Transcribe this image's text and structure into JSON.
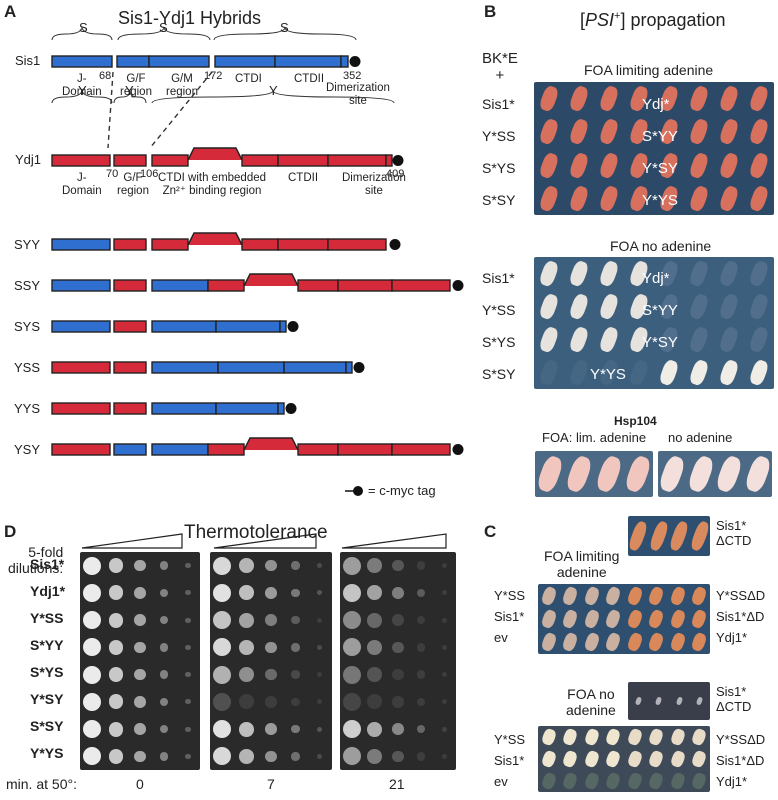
{
  "panelA": {
    "letter": "A",
    "title": "Sis1-Ydj1 Hybrids",
    "sis1": {
      "name": "Sis1",
      "brackets": [
        "S",
        "S",
        "S"
      ],
      "domains": [
        "J-\nDomain",
        "G/F\nregion",
        "G/M\nregion",
        "CTDI",
        "CTDII",
        "Dimerization\nsite"
      ],
      "positions": [
        "68",
        "172",
        "352"
      ]
    },
    "ydj1": {
      "name": "Ydj1",
      "brackets": [
        "Y",
        "Y",
        "Y"
      ],
      "domains": [
        "J-\nDomain",
        "G/F\nregion",
        "CTDI with embedded\nZn²⁺ binding region",
        "CTDII",
        "Dimerization\nsite"
      ],
      "positions": [
        "70",
        "106",
        "409"
      ]
    },
    "hybrids": [
      "SYY",
      "SSY",
      "SYS",
      "YSS",
      "YYS",
      "YSY"
    ],
    "legend": "= c-myc tag",
    "colors": {
      "sis1": "#2f6fd0",
      "ydj1": "#d42a3a"
    }
  },
  "panelB": {
    "letter": "B",
    "title_pre": "[",
    "title_italic": "PSI",
    "title_sup": "+",
    "title_post": "] propagation",
    "strain": "BK*E\n+",
    "plate1_title": "FOA limiting adenine",
    "plate2_title": "FOA no adenine",
    "left_labels": [
      "Sis1*",
      "Y*SS",
      "S*YS",
      "S*SY"
    ],
    "plate_labels": [
      "Ydj*",
      "S*YY",
      "Y*SY",
      "Y*YS"
    ],
    "hsp_title": "Hsp104",
    "hsp_sub1": "FOA: lim. adenine",
    "hsp_sub2": "no adenine"
  },
  "panelC": {
    "letter": "C",
    "plate1_title": "FOA limiting\nadenine",
    "plate2_title": "FOA no\nadenine",
    "left_labels": [
      "Y*SS",
      "Sis1*",
      "ev"
    ],
    "right_top": "Sis1*\nΔCTD",
    "right_labels": [
      "Y*SSΔD",
      "Sis1*ΔD",
      "Ydj1*"
    ]
  },
  "panelD": {
    "letter": "D",
    "title": "Thermotolerance",
    "dilution_label": "5-fold\ndilutions:",
    "rows": [
      "Sis1*",
      "Ydj1*",
      "Y*SS",
      "S*YY",
      "S*YS",
      "Y*SY",
      "S*SY",
      "Y*YS"
    ],
    "time_label": "min. at 50°:",
    "times": [
      "0",
      "7",
      "21"
    ]
  }
}
